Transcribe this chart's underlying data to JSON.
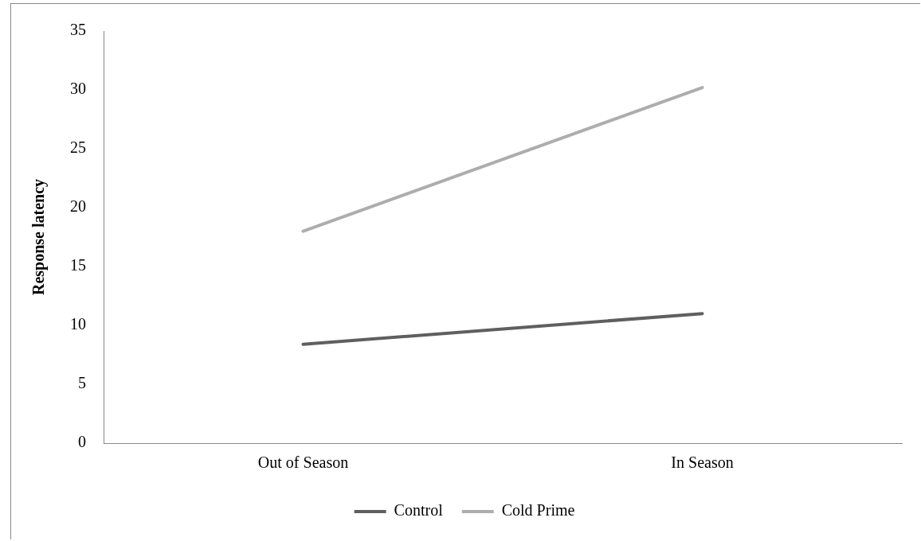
{
  "chart_data": {
    "type": "line",
    "ylabel": "Response latency",
    "categories": [
      "Out of Season",
      "In Season"
    ],
    "series": [
      {
        "name": "Control",
        "color": "#5f5f5f",
        "values": [
          8.4,
          11.0
        ]
      },
      {
        "name": "Cold Prime",
        "color": "#adadad",
        "values": [
          18.0,
          30.2
        ]
      }
    ],
    "ylim": [
      0,
      35
    ],
    "yticks": [
      0,
      5,
      10,
      15,
      20,
      25,
      30,
      35
    ],
    "grid": false,
    "legend": "bottom",
    "marker": "none",
    "line_style": "solid"
  }
}
